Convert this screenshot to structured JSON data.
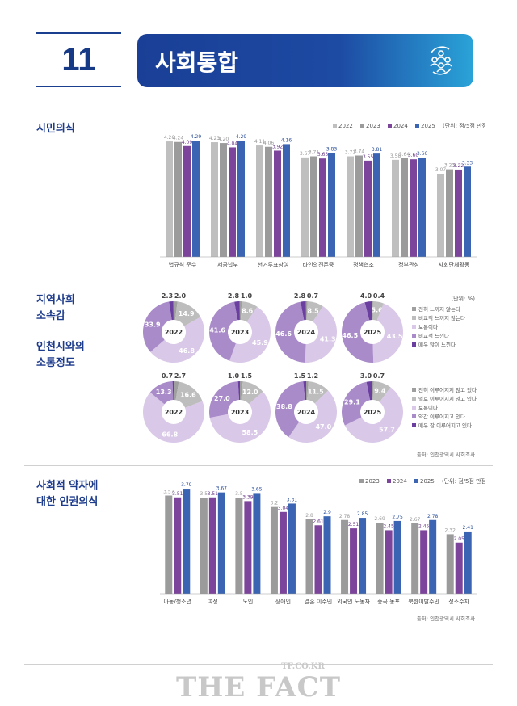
{
  "header": {
    "number": "11",
    "title": "사회통합",
    "icon": "people-cycle-icon"
  },
  "sections": {
    "s1": "시민의식",
    "s2a": "지역사회\n소속감",
    "s2b": "인천시와의\n소통정도",
    "s3": "사회적 약자에\n대한 인권의식"
  },
  "colors": {
    "2022": "#bfbfbf",
    "2023": "#9b9b9b",
    "2024": "#7d449c",
    "2025": "#3b64b3",
    "donut": [
      "#9f9f9f",
      "#bdbdbd",
      "#d9c8e7",
      "#a98bc9",
      "#6b3fa0"
    ]
  },
  "source": "출처: 인천광역시 사회조사",
  "watermark": {
    "text": "THE FACT",
    "site": "TF.CO.KR"
  },
  "chart_data": [
    {
      "type": "bar",
      "title": "시민의식",
      "unit": "(단위: 점/5점 만점)",
      "legend": "top-right",
      "series_names": [
        "2022",
        "2023",
        "2024",
        "2025"
      ],
      "categories": [
        "법규칙 준수",
        "세금납부",
        "선거투표참여",
        "타인의견존중",
        "정책협조",
        "정부관심",
        "사회단체활동"
      ],
      "series": [
        {
          "name": "2022",
          "values": [
            4.26,
            4.23,
            4.11,
            3.67,
            3.71,
            3.58,
            3.07
          ]
        },
        {
          "name": "2023",
          "values": [
            4.24,
            4.2,
            4.06,
            3.71,
            3.74,
            3.64,
            3.23
          ]
        },
        {
          "name": "2024",
          "values": [
            4.09,
            4.04,
            3.92,
            3.63,
            3.55,
            3.6,
            3.22
          ]
        },
        {
          "name": "2025",
          "values": [
            4.29,
            4.29,
            4.16,
            3.83,
            3.81,
            3.66,
            3.33
          ]
        }
      ],
      "labels": [
        [
          "4.26",
          "4.23",
          "4.11",
          "3.67",
          "3.71",
          "3.58",
          "3.07"
        ],
        [
          "4.24",
          "4.20",
          "4.06",
          "3.71",
          "3.74",
          "3.64",
          "3.23"
        ],
        [
          "4.09",
          "4.04",
          "3.92",
          "3.63",
          "3.55",
          "3.60",
          "3.22"
        ],
        [
          "4.29",
          "4.29",
          "4.16",
          "3.83",
          "3.81",
          "3.66",
          "3.33"
        ]
      ],
      "ylim": [
        0,
        4.5
      ],
      "grid": false
    },
    {
      "type": "pie",
      "title": "지역사회 소속감",
      "unit": "(단위: %)",
      "categories": [
        "전혀 느끼지 않는다",
        "비교적 느끼지 않는다",
        "보통이다",
        "비교적 느낀다",
        "매우 많이 느낀다"
      ],
      "years": [
        "2022",
        "2023",
        "2024",
        "2025"
      ],
      "values": [
        [
          2.0,
          14.9,
          46.8,
          33.9,
          2.3
        ],
        [
          1.0,
          8.6,
          45.9,
          41.6,
          2.8
        ],
        [
          0.7,
          8.5,
          41.3,
          46.6,
          2.8
        ],
        [
          0.4,
          5.6,
          43.5,
          46.5,
          4.0
        ]
      ],
      "labels": [
        [
          "2.0",
          "14.9",
          "46.8",
          "33.9",
          "2.3"
        ],
        [
          "1.0",
          "8.6",
          "45.9",
          "41.6",
          "2.8"
        ],
        [
          "0.7",
          "8.5",
          "41.3",
          "46.6",
          "2.8"
        ],
        [
          "0.4",
          "5.6",
          "43.5",
          "46.5",
          "4.0"
        ]
      ]
    },
    {
      "type": "pie",
      "title": "인천시와의 소통정도",
      "categories": [
        "전혀 이루어지지 않고 있다",
        "별로 이루어지지 않고 있다",
        "보통이다",
        "약간 이루어지고 있다",
        "매우 잘 이루어지고 있다"
      ],
      "years": [
        "2022",
        "2023",
        "2024",
        "2025"
      ],
      "values": [
        [
          2.7,
          16.6,
          66.8,
          13.3,
          0.7
        ],
        [
          1.5,
          12.0,
          58.5,
          27.0,
          1.0
        ],
        [
          1.2,
          11.5,
          47.0,
          38.8,
          1.5
        ],
        [
          0.7,
          9.4,
          57.7,
          29.1,
          3.0
        ]
      ],
      "labels": [
        [
          "2.7",
          "16.6",
          "66.8",
          "13.3",
          "0.7"
        ],
        [
          "1.5",
          "12.0",
          "58.5",
          "27.0",
          "1.0"
        ],
        [
          "1.2",
          "11.5",
          "47.0",
          "38.8",
          "1.5"
        ],
        [
          "0.7",
          "9.4",
          "57.7",
          "29.1",
          "3.0"
        ]
      ]
    },
    {
      "type": "bar",
      "title": "사회적 약자에 대한 인권의식",
      "unit": "(단위: 점/5점 만점)",
      "legend": "top-right",
      "series_names": [
        "2023",
        "2024",
        "2025"
      ],
      "categories": [
        "아동/청소년",
        "여성",
        "노인",
        "장애인",
        "결혼 이주민",
        "외국인 노동자",
        "중국 동포",
        "북한이탈주민",
        "성소수자"
      ],
      "series": [
        {
          "name": "2023",
          "values": [
            3.57,
            3.5,
            3.5,
            3.2,
            2.8,
            2.78,
            2.69,
            2.67,
            2.32
          ]
        },
        {
          "name": "2024",
          "values": [
            3.51,
            3.51,
            3.39,
            3.04,
            2.61,
            2.51,
            2.45,
            2.45,
            2.05
          ]
        },
        {
          "name": "2025",
          "values": [
            3.79,
            3.67,
            3.65,
            3.31,
            2.9,
            2.85,
            2.75,
            2.78,
            2.41
          ]
        }
      ],
      "labels": [
        [
          "3.57",
          "3.5",
          "3.5",
          "3.2",
          "2.8",
          "2.78",
          "2.69",
          "2.67",
          "2.32"
        ],
        [
          "3.51",
          "3.51",
          "3.39",
          "3.04",
          "2.61",
          "2.51",
          "2.45",
          "2.45",
          "2.05"
        ],
        [
          "3.79",
          "3.67",
          "3.65",
          "3.31",
          "2.9",
          "2.85",
          "2.75",
          "2.78",
          "2.41"
        ]
      ],
      "ylim": [
        0.4,
        4
      ],
      "grid": false
    }
  ]
}
